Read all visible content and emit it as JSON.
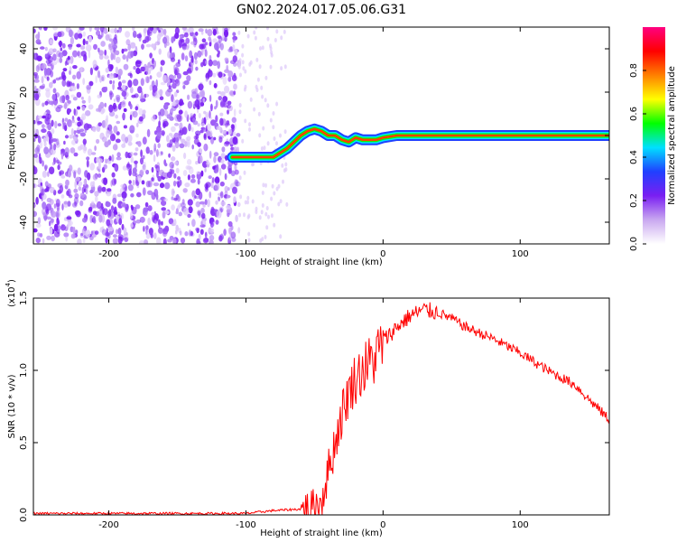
{
  "title": "GN02.2024.017.05.06.G31",
  "chart_data": [
    {
      "type": "heatmap",
      "xlabel": "Height of straight line (km)",
      "ylabel": "Frequency (Hz)",
      "xlim": [
        -255,
        165
      ],
      "ylim": [
        -50,
        50
      ],
      "xticks": [
        -200,
        -100,
        0,
        100
      ],
      "yticks": [
        -40,
        -20,
        0,
        20,
        40
      ],
      "colorbar": {
        "label": "Normalized spectral amplitude",
        "ticks": [
          "0.0",
          "0.2",
          "0.4",
          "0.6",
          "0.8"
        ],
        "range": [
          0,
          1
        ],
        "colormap": [
          "#ffffff",
          "#c9a8f0",
          "#7a1ff2",
          "#2040ff",
          "#00e0ff",
          "#00ff00",
          "#ffff00",
          "#ff8000",
          "#ff0000",
          "#ff0080"
        ]
      },
      "ridge": {
        "x": [
          -110,
          -100,
          -90,
          -80,
          -75,
          -70,
          -65,
          -60,
          -55,
          -50,
          -45,
          -40,
          -35,
          -30,
          -25,
          -20,
          -15,
          -10,
          -5,
          0,
          10,
          20,
          30,
          50,
          80,
          120,
          165
        ],
        "y": [
          -10,
          -10,
          -10,
          -10,
          -8,
          -6,
          -3,
          0,
          2,
          3,
          2,
          0,
          0,
          -2,
          -3,
          -1,
          -2,
          -2,
          -2,
          -1,
          0,
          0,
          0,
          0,
          0,
          0,
          0
        ]
      },
      "noise_region_x": [
        -255,
        -105
      ]
    },
    {
      "type": "line",
      "xlabel": "Height of straight line (km)",
      "ylabel": "SNR (10 * v/v)",
      "scale_label": "(x10^4)",
      "xlim": [
        -255,
        165
      ],
      "ylim": [
        0,
        1.5
      ],
      "xticks": [
        -200,
        -100,
        0,
        100
      ],
      "yticks": [
        "0.0",
        "0.5",
        "1.0",
        "1.5"
      ],
      "series": [
        {
          "color": "#ff0000",
          "x": [
            -255,
            -220,
            -180,
            -150,
            -120,
            -100,
            -80,
            -60,
            -50,
            -45,
            -40,
            -35,
            -30,
            -25,
            -20,
            -15,
            -10,
            -5,
            0,
            10,
            20,
            30,
            40,
            50,
            60,
            80,
            100,
            120,
            140,
            150,
            165
          ],
          "y": [
            0.01,
            0.01,
            0.01,
            0.01,
            0.01,
            0.01,
            0.03,
            0.04,
            0.05,
            0.1,
            0.3,
            0.5,
            0.7,
            0.85,
            0.95,
            1.0,
            1.05,
            1.1,
            1.2,
            1.3,
            1.38,
            1.42,
            1.4,
            1.36,
            1.3,
            1.22,
            1.12,
            1.0,
            0.9,
            0.8,
            0.66
          ]
        }
      ]
    }
  ]
}
